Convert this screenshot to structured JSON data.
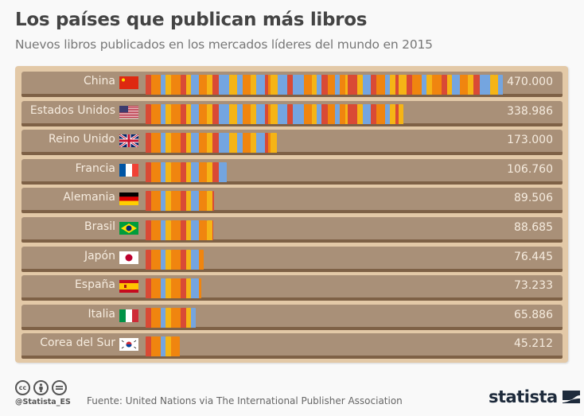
{
  "title": "Los países que publican más libros",
  "subtitle": "Nuevos libros publicados en los mercados líderes del mundo en 2015",
  "chart_data": {
    "type": "bar",
    "orientation": "horizontal",
    "title": "Los países que publican más libros",
    "subtitle": "Nuevos libros publicados en los mercados líderes del mundo en 2015",
    "xlabel": "",
    "ylabel": "",
    "xlim": [
      0,
      470000
    ],
    "grid": false,
    "categories": [
      "China",
      "Estados Unidos",
      "Reino Unido",
      "Francia",
      "Alemania",
      "Brasil",
      "Japón",
      "España",
      "Italia",
      "Corea del Sur"
    ],
    "values": [
      470000,
      338986,
      173000,
      106760,
      89506,
      88685,
      76445,
      73233,
      65886,
      45212
    ],
    "value_labels": [
      "470.000",
      "338.986",
      "173.000",
      "106.760",
      "89.506",
      "88.685",
      "76.445",
      "73.233",
      "65.886",
      "45.212"
    ],
    "flags": [
      "flag-china",
      "flag-usa",
      "flag-uk",
      "flag-france",
      "flag-germany",
      "flag-brazil",
      "flag-japan",
      "flag-spain",
      "flag-italy",
      "flag-south-korea"
    ]
  },
  "colors": {
    "red": "#d94a35",
    "orange": "#f0850f",
    "blue": "#74a5e0",
    "yellow": "#f5b416",
    "shelf": "#a99078",
    "panel": "#e3c9a7"
  },
  "footer": {
    "license_icons": [
      "cc-icon",
      "by-icon",
      "nd-icon"
    ],
    "handle": "@Statista_ES",
    "source": "Fuente: United Nations via The International Publisher Association",
    "logo": "statista"
  }
}
